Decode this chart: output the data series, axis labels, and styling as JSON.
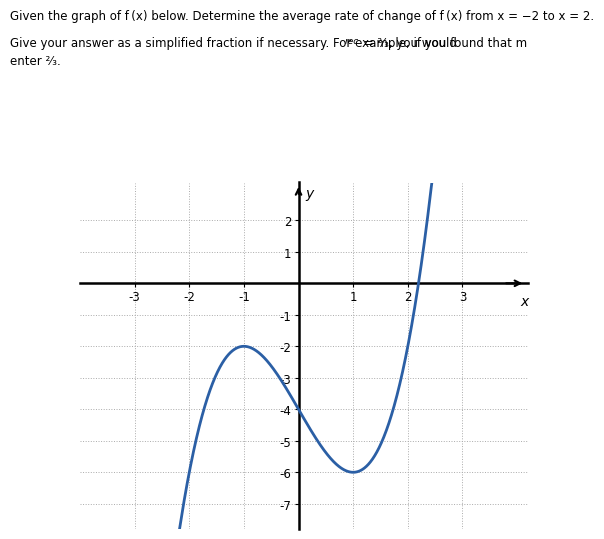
{
  "line1": "Given the graph of f(x) below. Determine the average rate of change of f(x) from x = −2 to x = 2.",
  "line2a": "Give your answer as a simplified fraction if necessary. For example, if you found that m",
  "line2b": " = ",
  "line2c": ", you would",
  "line3": "enter ",
  "xlim": [
    -4.0,
    4.2
  ],
  "ylim": [
    -7.8,
    3.2
  ],
  "xticks": [
    -3,
    -2,
    -1,
    1,
    2,
    3
  ],
  "yticks": [
    -7,
    -6,
    -5,
    -4,
    -3,
    -2,
    -1,
    1,
    2
  ],
  "curve_color": "#2b5fa5",
  "curve_lw": 2.0,
  "grid_color": "#aaaaaa",
  "axes_color": "#000000",
  "x_range_start": -3.6,
  "x_range_end": 3.55
}
